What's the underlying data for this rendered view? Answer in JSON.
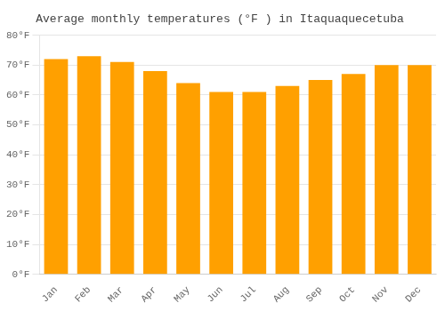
{
  "chart_data": {
    "type": "bar",
    "title": "Average monthly temperatures (°F ) in Itaquaquecetuba",
    "categories": [
      "Jan",
      "Feb",
      "Mar",
      "Apr",
      "May",
      "Jun",
      "Jul",
      "Aug",
      "Sep",
      "Oct",
      "Nov",
      "Dec"
    ],
    "values": [
      72,
      73,
      71,
      68,
      64,
      61,
      61,
      63,
      65,
      67,
      70,
      70
    ],
    "color": "#FFA000",
    "ylim": [
      0,
      80
    ],
    "yticks": [
      {
        "value": 0,
        "label": "0°F"
      },
      {
        "value": 10,
        "label": "10°F"
      },
      {
        "value": 20,
        "label": "20°F"
      },
      {
        "value": 30,
        "label": "30°F"
      },
      {
        "value": 40,
        "label": "40°F"
      },
      {
        "value": 50,
        "label": "50°F"
      },
      {
        "value": 60,
        "label": "60°F"
      },
      {
        "value": 70,
        "label": "70°F"
      },
      {
        "value": 80,
        "label": "80°F"
      }
    ],
    "grid": true
  }
}
